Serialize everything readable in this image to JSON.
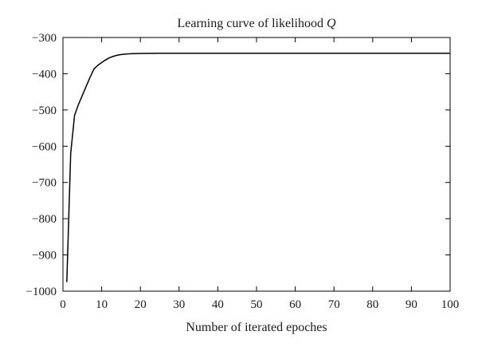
{
  "chart_data": {
    "type": "line",
    "title": "Learning curve of likelihood",
    "title_variable": "Q",
    "xlabel": "Number of iterated epoches",
    "ylabel": "",
    "xlim": [
      0,
      100
    ],
    "ylim": [
      -1000,
      -300
    ],
    "xticks": [
      0,
      10,
      20,
      30,
      40,
      50,
      60,
      70,
      80,
      90,
      100
    ],
    "yticks": [
      -1000,
      -900,
      -800,
      -700,
      -600,
      -500,
      -400,
      -300
    ],
    "tick_labels": {
      "x": [
        "0",
        "10",
        "20",
        "30",
        "40",
        "50",
        "60",
        "70",
        "80",
        "90",
        "100"
      ],
      "y": [
        "−1000",
        "−900",
        "−800",
        "−700",
        "−600",
        "−500",
        "−400",
        "−300"
      ]
    },
    "grid": false,
    "line_color": "#000000",
    "series": [
      {
        "x": [
          1,
          2,
          3,
          4,
          5,
          6,
          7,
          8,
          9,
          10,
          11,
          12,
          13,
          14,
          15,
          16,
          17,
          18,
          19,
          20,
          22,
          25,
          30,
          40,
          50,
          60,
          70,
          80,
          90,
          100
        ],
        "y": [
          -975,
          -620,
          -515,
          -485,
          -460,
          -435,
          -410,
          -387,
          -377,
          -369,
          -362,
          -356,
          -352,
          -349,
          -347,
          -346,
          -345,
          -344.6,
          -344.3,
          -344,
          -343.8,
          -343.6,
          -343.5,
          -343.5,
          -343.5,
          -343.5,
          -343.5,
          -343.5,
          -343.5,
          -343.5
        ]
      }
    ]
  }
}
